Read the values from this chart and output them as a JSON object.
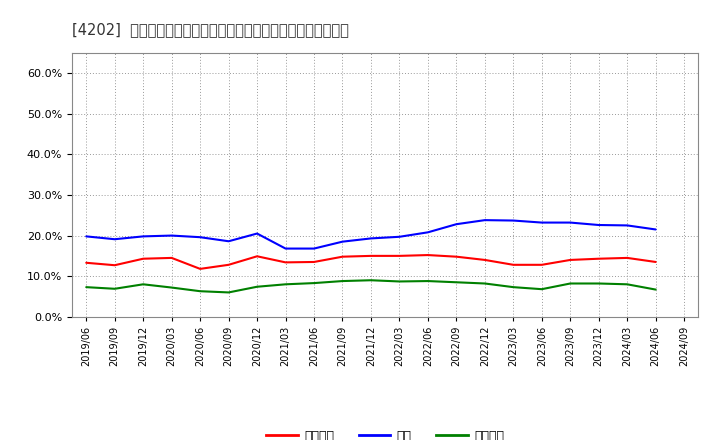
{
  "title": "[4202]  売上債権、在庫、買入債務の総資産に対する比率の推移",
  "x_labels": [
    "2019/06",
    "2019/09",
    "2019/12",
    "2020/03",
    "2020/06",
    "2020/09",
    "2020/12",
    "2021/03",
    "2021/06",
    "2021/09",
    "2021/12",
    "2022/03",
    "2022/06",
    "2022/09",
    "2022/12",
    "2023/03",
    "2023/06",
    "2023/09",
    "2023/12",
    "2024/03",
    "2024/06",
    "2024/09"
  ],
  "売上債権": [
    0.133,
    0.127,
    0.143,
    0.145,
    0.118,
    0.128,
    0.149,
    0.134,
    0.135,
    0.148,
    0.15,
    0.15,
    0.152,
    0.148,
    0.14,
    0.128,
    0.128,
    0.14,
    0.143,
    0.145,
    0.135,
    null
  ],
  "在庫": [
    0.198,
    0.191,
    0.198,
    0.2,
    0.196,
    0.186,
    0.205,
    0.168,
    0.168,
    0.185,
    0.193,
    0.197,
    0.208,
    0.228,
    0.238,
    0.237,
    0.232,
    0.232,
    0.226,
    0.225,
    0.215,
    null
  ],
  "買入債務": [
    0.073,
    0.069,
    0.08,
    0.072,
    0.063,
    0.06,
    0.074,
    0.08,
    0.083,
    0.088,
    0.09,
    0.087,
    0.088,
    0.085,
    0.082,
    0.073,
    0.068,
    0.082,
    0.082,
    0.08,
    0.067,
    null
  ],
  "line_colors": {
    "売上債権": "#ff0000",
    "在庫": "#0000ff",
    "買入債務": "#008000"
  },
  "legend_labels": [
    "売上債権",
    "在庫",
    "買入債務"
  ],
  "ylim": [
    0.0,
    0.65
  ],
  "yticks": [
    0.0,
    0.1,
    0.2,
    0.3,
    0.4,
    0.5,
    0.6
  ],
  "background_color": "#ffffff",
  "plot_bg_color": "#ffffff",
  "grid_color": "#999999",
  "title_fontsize": 10.5
}
